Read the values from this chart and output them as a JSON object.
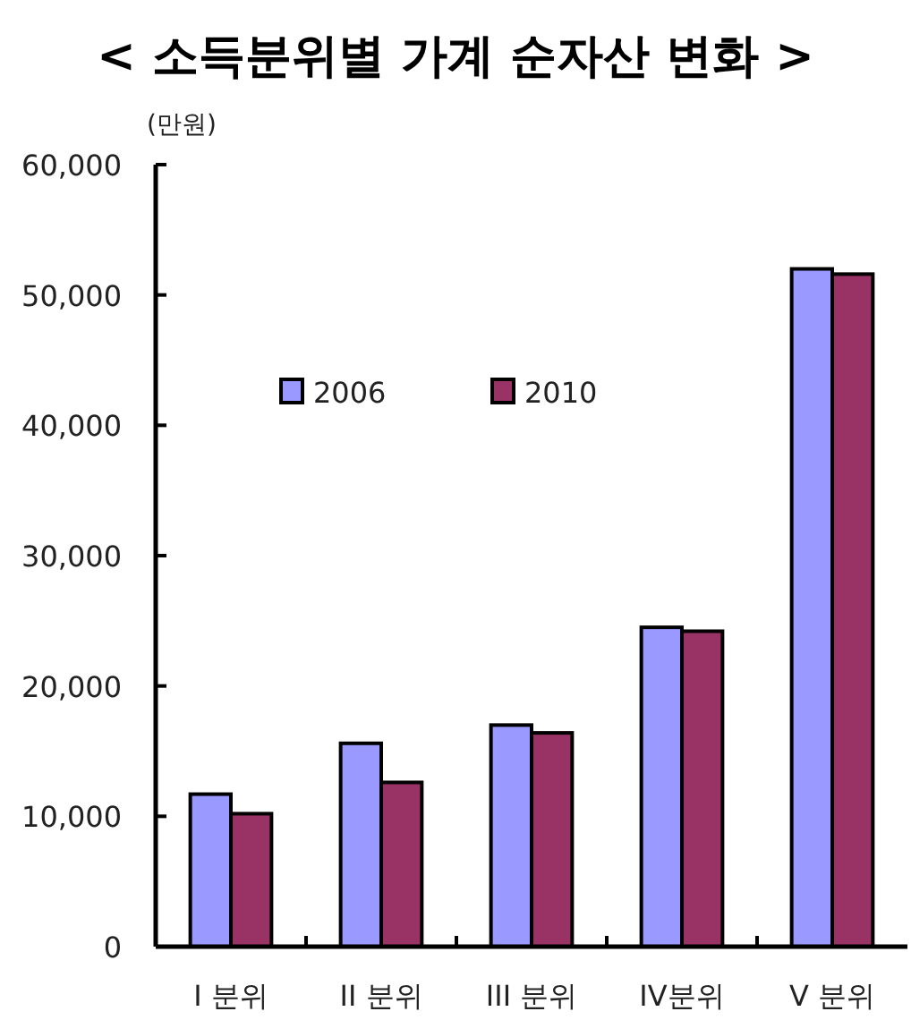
{
  "chart_data": {
    "type": "bar",
    "title": "< 소득분위별 가계 순자산 변화 >",
    "ylabel": "(만원)",
    "categories": [
      "I 분위",
      "II 분위",
      "III 분위",
      "IV분위",
      "V 분위"
    ],
    "series": [
      {
        "name": "2006",
        "color": "#9999ff",
        "values": [
          11700,
          15600,
          17000,
          24500,
          52000
        ]
      },
      {
        "name": "2010",
        "color": "#993366",
        "values": [
          10200,
          12600,
          16400,
          24200,
          51600
        ]
      }
    ],
    "ylim": [
      0,
      60000
    ],
    "yticks": [
      0,
      {
        "value": 10000,
        "label": "10,000"
      },
      {
        "value": 20000,
        "label": "20,000"
      },
      {
        "value": 30000,
        "label": "30,000"
      },
      {
        "value": 40000,
        "label": "40,000"
      },
      {
        "value": 50000,
        "label": "50,000"
      },
      {
        "value": 60000,
        "label": "60,000"
      }
    ],
    "legend": "top left",
    "grid": false
  }
}
